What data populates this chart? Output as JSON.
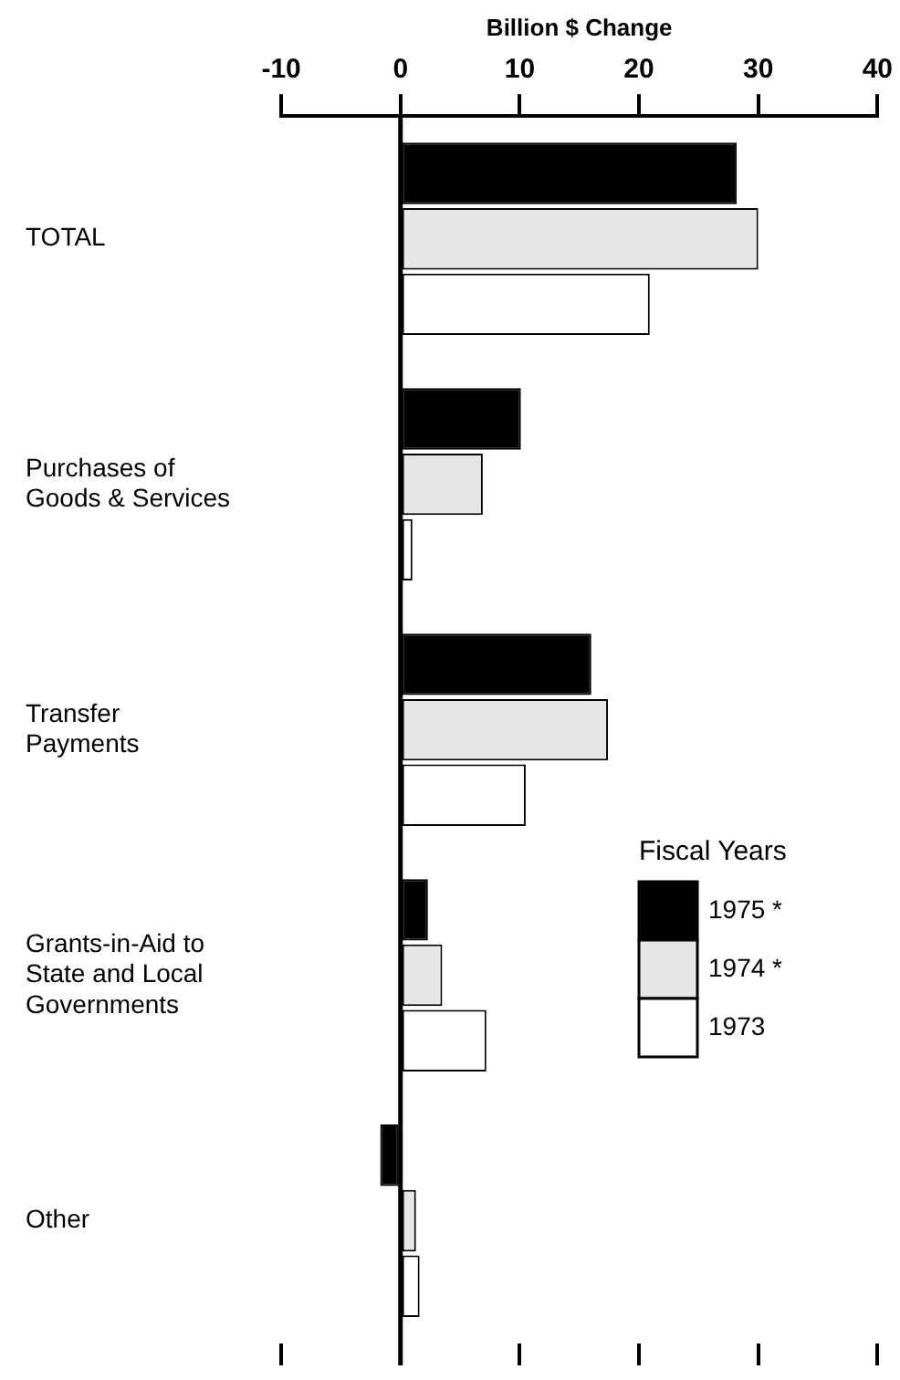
{
  "chart_data": {
    "type": "bar",
    "orientation": "horizontal",
    "xlabel": "Billion $ Change",
    "legend_title": "Fiscal Years",
    "categories": [
      "TOTAL",
      "Purchases of Goods & Services",
      "Transfer Payments",
      "Grants-in-Aid to State and Local Governments",
      "Other"
    ],
    "series": [
      {
        "name": "1975 *",
        "color": "#000000",
        "values": [
          28.2,
          10.1,
          16,
          2.3,
          -1.7
        ]
      },
      {
        "name": "1974 *",
        "color": "#e6e6e6",
        "values": [
          30,
          6.9,
          17.4,
          3.5,
          1.3
        ]
      },
      {
        "name": "1973",
        "color": "#ffffff",
        "values": [
          20.9,
          1.0,
          10.5,
          7.2,
          1.6
        ]
      }
    ],
    "xlim": [
      -10,
      40
    ],
    "xticks": [
      -10,
      0,
      10,
      20,
      30,
      40
    ],
    "legend": "right"
  }
}
